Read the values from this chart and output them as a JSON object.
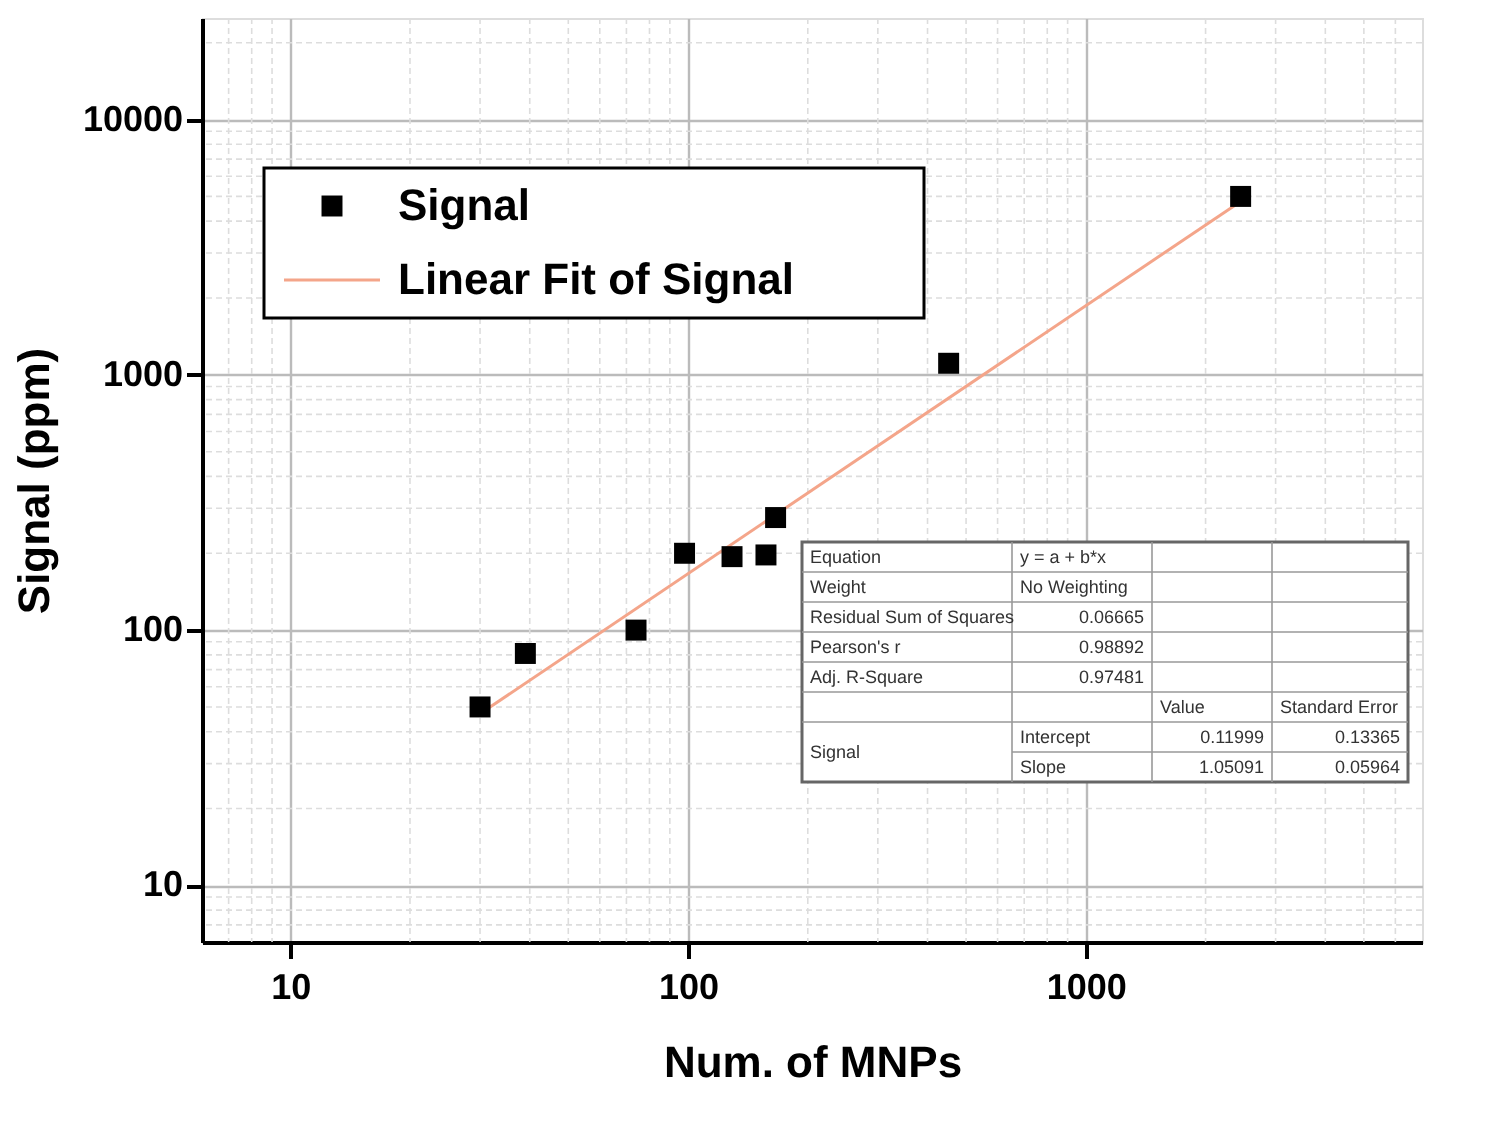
{
  "chart_data": {
    "type": "scatter",
    "xlabel": "Num. of MNPs",
    "ylabel": "Signal (ppm)",
    "log": "xy",
    "xlim": [
      6,
      7000
    ],
    "ylim": [
      6,
      25000
    ],
    "xticks": [
      10,
      100,
      1000
    ],
    "yticks": [
      10,
      100,
      1000,
      10000
    ],
    "grid": true,
    "legend": "top left",
    "series": [
      {
        "name": "Signal",
        "marker": "square",
        "color": "#000000",
        "x": [
          30,
          39,
          74,
          98,
          129,
          157,
          166,
          452,
          2450
        ],
        "values": [
          50,
          81,
          100,
          200,
          194,
          197,
          276,
          1110,
          5000
        ]
      },
      {
        "name": "Linear Fit of Signal",
        "type": "line",
        "line_style": "solid",
        "color": "#f4a58a",
        "x": [
          30,
          2450
        ],
        "values": [
          47,
          4780
        ]
      }
    ],
    "annotations": [
      "Equation",
      "y = a + b*x",
      "Weight",
      "No Weighting",
      "Residual Sum of Squares",
      "0.06665",
      "Pearson's r",
      "0.98892",
      "Adj. R-Square",
      "0.97481",
      "Value",
      "Standard Error",
      "Signal",
      "Intercept",
      "0.11999",
      "0.13365",
      "Slope",
      "1.05091",
      "0.05964"
    ]
  }
}
